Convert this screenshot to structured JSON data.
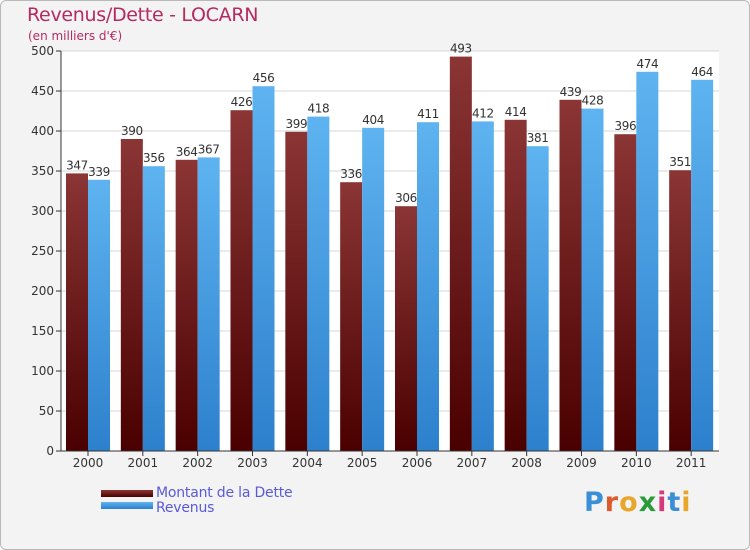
{
  "chart_data": {
    "type": "bar",
    "title": "Revenus/Dette - LOCARN",
    "subtitle": "(en milliers d'€)",
    "categories": [
      "2000",
      "2001",
      "2002",
      "2003",
      "2004",
      "2005",
      "2006",
      "2007",
      "2008",
      "2009",
      "2010",
      "2011"
    ],
    "series": [
      {
        "name": "Montant de la Dette",
        "color": "#7a2a2a",
        "values": [
          347,
          390,
          364,
          426,
          399,
          336,
          306,
          493,
          414,
          439,
          396,
          351
        ]
      },
      {
        "name": "Revenus",
        "color": "#4da3e6",
        "values": [
          339,
          356,
          367,
          456,
          418,
          404,
          411,
          412,
          381,
          428,
          474,
          464
        ]
      }
    ],
    "ylim": [
      0,
      500
    ],
    "yticks": [
      "0",
      "50",
      "100",
      "150",
      "200",
      "250",
      "300",
      "350",
      "400",
      "450",
      "500"
    ],
    "grid": true,
    "legend_position": "bottom-left"
  },
  "logo": {
    "letters": [
      {
        "ch": "P",
        "color": "#3a8fd6"
      },
      {
        "ch": "r",
        "color": "#e0592a"
      },
      {
        "ch": "o",
        "color": "#e8a62a"
      },
      {
        "ch": "x",
        "color": "#2b9a3a"
      },
      {
        "ch": "i",
        "color": "#d63a7a"
      },
      {
        "ch": "t",
        "color": "#3a8fd6"
      },
      {
        "ch": "i",
        "color": "#e8a62a"
      }
    ]
  }
}
